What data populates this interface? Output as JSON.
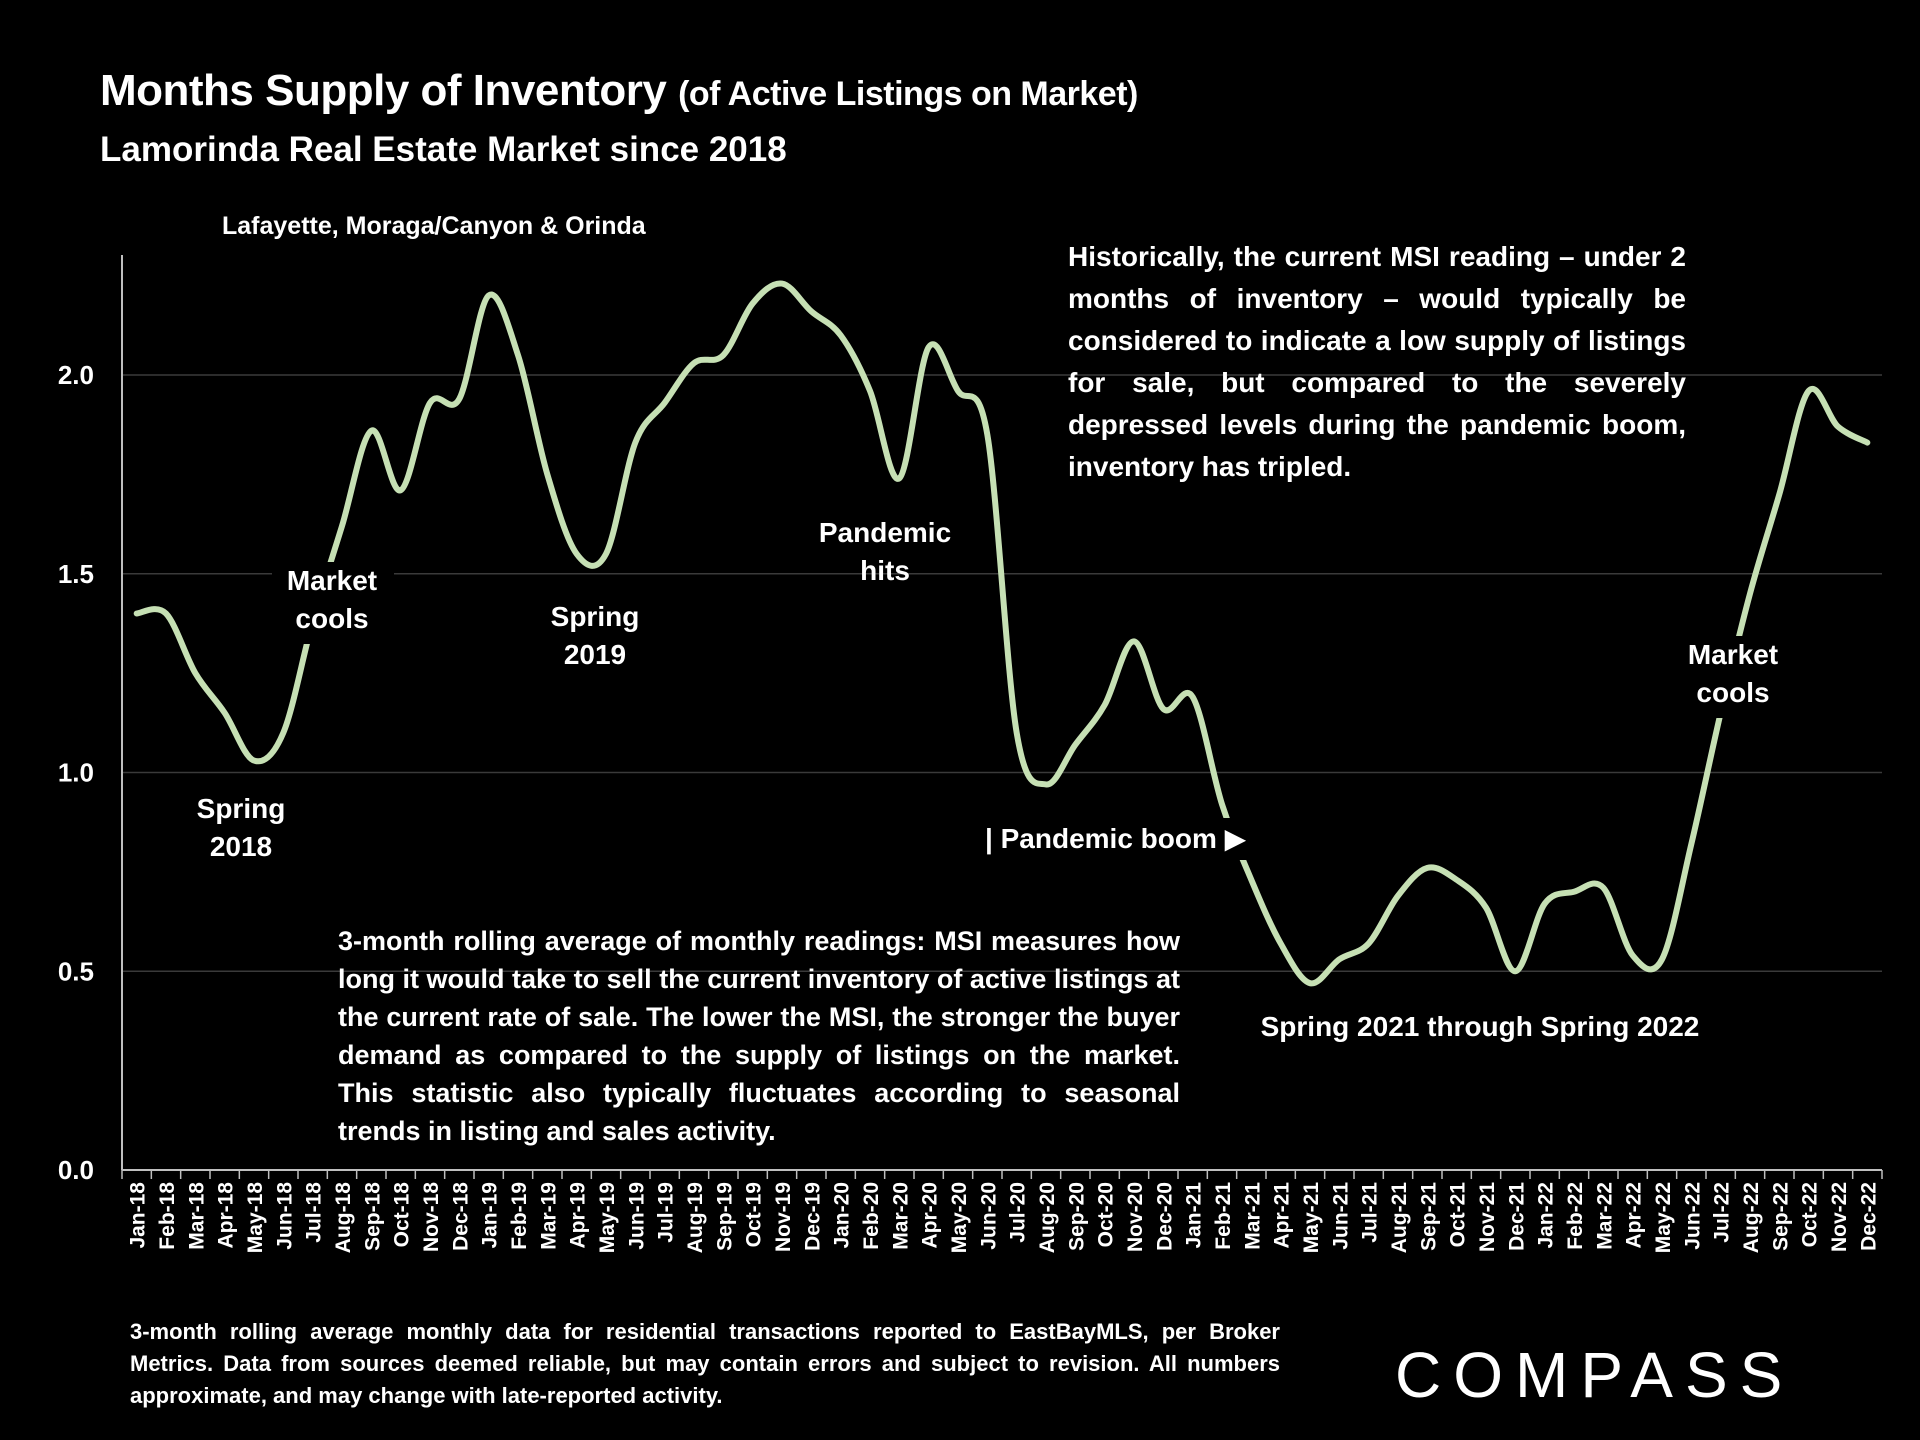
{
  "header": {
    "title": "Months Supply of Inventory",
    "title_suffix": "(of Active Listings on Market)",
    "subtitle": "Lamorinda Real Estate Market since 2018",
    "region": "Lafayette, Moraga/Canyon & Orinda"
  },
  "annotations": {
    "spring2018": "Spring\n2018",
    "market_cools_2018": "Market\ncools",
    "spring2019": "Spring\n2019",
    "pandemic_hits": "Pandemic\nhits",
    "pandemic_boom": "| Pandemic boom ▶",
    "spring2021_2022": "Spring 2021 through Spring 2022",
    "market_cools_2022": "Market\ncools"
  },
  "historical_note": "Historically, the current MSI reading – under 2 months of inventory – would typically be considered to indicate a low supply of listings for sale, but compared to the severely depressed levels during the pandemic boom, inventory has tripled.",
  "method_note": "3-month rolling average of monthly readings: MSI measures how long it would take to sell the current inventory of active listings at the current rate of sale. The lower the MSI, the stronger the buyer demand as compared to the supply of listings on the market. This statistic also typically fluctuates according to seasonal trends in listing and sales activity.",
  "footnote": "3-month rolling average monthly data for residential transactions reported to EastBayMLS, per Broker Metrics. Data from sources deemed reliable, but may contain errors and subject to revision. All numbers approximate, and may change with late-reported activity.",
  "brand": "COMPASS",
  "colors": {
    "line": "#c6e0b4",
    "grid": "#3a3a3a",
    "axis": "#bfbfbf",
    "background": "#000000"
  },
  "chart_data": {
    "type": "line",
    "title": "Months Supply of Inventory",
    "xlabel": "",
    "ylabel": "",
    "ylim": [
      0,
      2.3
    ],
    "yticks": [
      "0.0",
      "0.5",
      "1.0",
      "1.5",
      "2.0"
    ],
    "ytick_values": [
      0,
      0.5,
      1.0,
      1.5,
      2.0
    ],
    "categories": [
      "Jan-18",
      "Feb-18",
      "Mar-18",
      "Apr-18",
      "May-18",
      "Jun-18",
      "Jul-18",
      "Aug-18",
      "Sep-18",
      "Oct-18",
      "Nov-18",
      "Dec-18",
      "Jan-19",
      "Feb-19",
      "Mar-19",
      "Apr-19",
      "May-19",
      "Jun-19",
      "Jul-19",
      "Aug-19",
      "Sep-19",
      "Oct-19",
      "Nov-19",
      "Dec-19",
      "Jan-20",
      "Feb-20",
      "Mar-20",
      "Apr-20",
      "May-20",
      "Jun-20",
      "Jul-20",
      "Aug-20",
      "Sep-20",
      "Oct-20",
      "Nov-20",
      "Dec-20",
      "Jan-21",
      "Feb-21",
      "Mar-21",
      "Apr-21",
      "May-21",
      "Jun-21",
      "Jul-21",
      "Aug-21",
      "Sep-21",
      "Oct-21",
      "Nov-21",
      "Dec-21",
      "Jan-22",
      "Feb-22",
      "Mar-22",
      "Apr-22",
      "May-22",
      "Jun-22",
      "Jul-22",
      "Aug-22",
      "Sep-22",
      "Oct-22",
      "Nov-22",
      "Dec-22"
    ],
    "series": [
      {
        "name": "MSI (3-month rolling average)",
        "values": [
          1.4,
          1.4,
          1.25,
          1.15,
          1.03,
          1.1,
          1.38,
          1.62,
          1.86,
          1.71,
          1.93,
          1.94,
          2.2,
          2.05,
          1.75,
          1.55,
          1.55,
          1.83,
          1.93,
          2.03,
          2.05,
          2.18,
          2.23,
          2.16,
          2.1,
          1.96,
          1.74,
          2.07,
          1.96,
          1.85,
          1.1,
          0.97,
          1.07,
          1.17,
          1.33,
          1.16,
          1.19,
          0.92,
          0.73,
          0.57,
          0.47,
          0.53,
          0.57,
          0.69,
          0.76,
          0.73,
          0.66,
          0.5,
          0.67,
          0.7,
          0.71,
          0.54,
          0.53,
          0.82,
          1.15,
          1.45,
          1.7,
          1.96,
          1.87,
          1.83
        ]
      }
    ]
  }
}
